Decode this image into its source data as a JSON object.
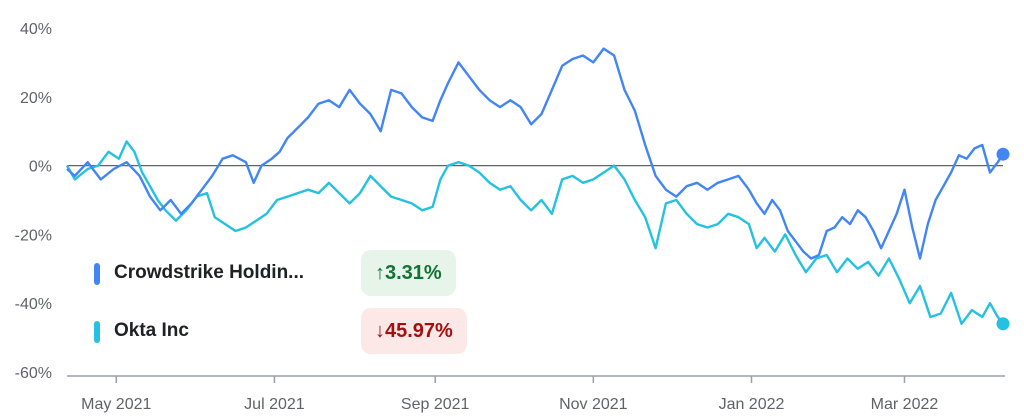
{
  "colors": {
    "crowdstrike": "#4285f4",
    "okta": "#24c1e0",
    "baseline": "#5f6368",
    "axis": "#9aa0a6",
    "up_text": "#137333",
    "up_bg": "#e6f4ea",
    "down_text": "#a50e0e",
    "down_bg": "#fce8e6"
  },
  "legend": [
    {
      "label": "Crowdstrike Holdin...",
      "change": "3.31%",
      "direction": "up",
      "arrow": "↑",
      "color": "#4285f4"
    },
    {
      "label": "Okta Inc",
      "change": "45.97%",
      "direction": "down",
      "arrow": "↓",
      "color": "#24c1e0"
    }
  ],
  "chart_data": {
    "type": "line",
    "x_ticks": [
      "May 2021",
      "Jul 2021",
      "Sep 2021",
      "Nov 2021",
      "Jan 2022",
      "Mar 2022"
    ],
    "y_ticks": [
      "40%",
      "20%",
      "0%",
      "-20%",
      "-40%",
      "-60%"
    ],
    "ylim": [
      -60,
      40
    ],
    "x_start": "2021-04-12",
    "x_end": "2022-04-08",
    "baseline": 0,
    "series": [
      {
        "name": "Crowdstrike Holdin...",
        "color": "#4285f4",
        "end_value": 3.31,
        "points": [
          [
            "2021-04-12",
            -1
          ],
          [
            "2021-04-15",
            -3
          ],
          [
            "2021-04-20",
            1
          ],
          [
            "2021-04-25",
            -4
          ],
          [
            "2021-04-30",
            -1
          ],
          [
            "2021-05-05",
            1
          ],
          [
            "2021-05-10",
            -3
          ],
          [
            "2021-05-14",
            -9
          ],
          [
            "2021-05-18",
            -13
          ],
          [
            "2021-05-22",
            -10
          ],
          [
            "2021-05-26",
            -14
          ],
          [
            "2021-05-30",
            -11
          ],
          [
            "2021-06-03",
            -7
          ],
          [
            "2021-06-07",
            -3
          ],
          [
            "2021-06-11",
            2
          ],
          [
            "2021-06-15",
            3
          ],
          [
            "2021-06-20",
            1
          ],
          [
            "2021-06-23",
            -5
          ],
          [
            "2021-06-26",
            0
          ],
          [
            "2021-06-30",
            2
          ],
          [
            "2021-07-03",
            4
          ],
          [
            "2021-07-06",
            8
          ],
          [
            "2021-07-10",
            11
          ],
          [
            "2021-07-14",
            14
          ],
          [
            "2021-07-18",
            18
          ],
          [
            "2021-07-22",
            19
          ],
          [
            "2021-07-26",
            17
          ],
          [
            "2021-07-30",
            22
          ],
          [
            "2021-08-03",
            18
          ],
          [
            "2021-08-07",
            15
          ],
          [
            "2021-08-11",
            10
          ],
          [
            "2021-08-15",
            22
          ],
          [
            "2021-08-19",
            21
          ],
          [
            "2021-08-23",
            17
          ],
          [
            "2021-08-27",
            14
          ],
          [
            "2021-08-31",
            13
          ],
          [
            "2021-09-03",
            19
          ],
          [
            "2021-09-06",
            24
          ],
          [
            "2021-09-10",
            30
          ],
          [
            "2021-09-14",
            26
          ],
          [
            "2021-09-18",
            22
          ],
          [
            "2021-09-22",
            19
          ],
          [
            "2021-09-26",
            17
          ],
          [
            "2021-09-30",
            19
          ],
          [
            "2021-10-04",
            17
          ],
          [
            "2021-10-08",
            12
          ],
          [
            "2021-10-12",
            15
          ],
          [
            "2021-10-16",
            22
          ],
          [
            "2021-10-20",
            29
          ],
          [
            "2021-10-24",
            31
          ],
          [
            "2021-10-28",
            32
          ],
          [
            "2021-11-01",
            30
          ],
          [
            "2021-11-05",
            34
          ],
          [
            "2021-11-09",
            32
          ],
          [
            "2021-11-13",
            22
          ],
          [
            "2021-11-17",
            16
          ],
          [
            "2021-11-21",
            6
          ],
          [
            "2021-11-25",
            -3
          ],
          [
            "2021-11-29",
            -7
          ],
          [
            "2021-12-03",
            -9
          ],
          [
            "2021-12-07",
            -6
          ],
          [
            "2021-12-11",
            -5
          ],
          [
            "2021-12-15",
            -7
          ],
          [
            "2021-12-19",
            -5
          ],
          [
            "2021-12-23",
            -4
          ],
          [
            "2021-12-27",
            -3
          ],
          [
            "2021-12-31",
            -7
          ],
          [
            "2022-01-03",
            -11
          ],
          [
            "2022-01-06",
            -14
          ],
          [
            "2022-01-09",
            -10
          ],
          [
            "2022-01-12",
            -13
          ],
          [
            "2022-01-15",
            -19
          ],
          [
            "2022-01-18",
            -22
          ],
          [
            "2022-01-21",
            -25
          ],
          [
            "2022-01-24",
            -27
          ],
          [
            "2022-01-27",
            -26
          ],
          [
            "2022-01-30",
            -19
          ],
          [
            "2022-02-02",
            -18
          ],
          [
            "2022-02-05",
            -15
          ],
          [
            "2022-02-08",
            -17
          ],
          [
            "2022-02-11",
            -13
          ],
          [
            "2022-02-14",
            -15
          ],
          [
            "2022-02-17",
            -19
          ],
          [
            "2022-02-20",
            -24
          ],
          [
            "2022-02-23",
            -19
          ],
          [
            "2022-02-26",
            -14
          ],
          [
            "2022-03-01",
            -7
          ],
          [
            "2022-03-04",
            -18
          ],
          [
            "2022-03-07",
            -27
          ],
          [
            "2022-03-10",
            -17
          ],
          [
            "2022-03-13",
            -10
          ],
          [
            "2022-03-16",
            -6
          ],
          [
            "2022-03-19",
            -2
          ],
          [
            "2022-03-22",
            3
          ],
          [
            "2022-03-25",
            2
          ],
          [
            "2022-03-28",
            5
          ],
          [
            "2022-03-31",
            6
          ],
          [
            "2022-04-03",
            -2
          ],
          [
            "2022-04-06",
            1
          ],
          [
            "2022-04-08",
            3.31
          ]
        ]
      },
      {
        "name": "Okta Inc",
        "color": "#24c1e0",
        "end_value": -45.97,
        "points": [
          [
            "2021-04-12",
            0
          ],
          [
            "2021-04-15",
            -4
          ],
          [
            "2021-04-20",
            -1
          ],
          [
            "2021-04-24",
            0
          ],
          [
            "2021-04-28",
            4
          ],
          [
            "2021-05-02",
            2
          ],
          [
            "2021-05-05",
            7
          ],
          [
            "2021-05-08",
            4
          ],
          [
            "2021-05-11",
            -2
          ],
          [
            "2021-05-14",
            -6
          ],
          [
            "2021-05-17",
            -10
          ],
          [
            "2021-05-20",
            -13
          ],
          [
            "2021-05-24",
            -16
          ],
          [
            "2021-05-28",
            -13
          ],
          [
            "2021-06-01",
            -9
          ],
          [
            "2021-06-05",
            -8
          ],
          [
            "2021-06-08",
            -15
          ],
          [
            "2021-06-12",
            -17
          ],
          [
            "2021-06-16",
            -19
          ],
          [
            "2021-06-20",
            -18
          ],
          [
            "2021-06-24",
            -16
          ],
          [
            "2021-06-28",
            -14
          ],
          [
            "2021-07-02",
            -10
          ],
          [
            "2021-07-06",
            -9
          ],
          [
            "2021-07-10",
            -8
          ],
          [
            "2021-07-14",
            -7
          ],
          [
            "2021-07-18",
            -8
          ],
          [
            "2021-07-22",
            -5
          ],
          [
            "2021-07-26",
            -8
          ],
          [
            "2021-07-30",
            -11
          ],
          [
            "2021-08-03",
            -8
          ],
          [
            "2021-08-07",
            -3
          ],
          [
            "2021-08-11",
            -6
          ],
          [
            "2021-08-15",
            -9
          ],
          [
            "2021-08-19",
            -10
          ],
          [
            "2021-08-23",
            -11
          ],
          [
            "2021-08-27",
            -13
          ],
          [
            "2021-08-31",
            -12
          ],
          [
            "2021-09-03",
            -4
          ],
          [
            "2021-09-06",
            0
          ],
          [
            "2021-09-10",
            1
          ],
          [
            "2021-09-14",
            0
          ],
          [
            "2021-09-18",
            -2
          ],
          [
            "2021-09-22",
            -5
          ],
          [
            "2021-09-26",
            -7
          ],
          [
            "2021-09-30",
            -6
          ],
          [
            "2021-10-04",
            -10
          ],
          [
            "2021-10-08",
            -13
          ],
          [
            "2021-10-12",
            -10
          ],
          [
            "2021-10-16",
            -14
          ],
          [
            "2021-10-20",
            -4
          ],
          [
            "2021-10-24",
            -3
          ],
          [
            "2021-10-28",
            -5
          ],
          [
            "2021-11-01",
            -4
          ],
          [
            "2021-11-05",
            -2
          ],
          [
            "2021-11-09",
            0
          ],
          [
            "2021-11-13",
            -4
          ],
          [
            "2021-11-17",
            -10
          ],
          [
            "2021-11-21",
            -15
          ],
          [
            "2021-11-25",
            -24
          ],
          [
            "2021-11-29",
            -11
          ],
          [
            "2021-12-03",
            -10
          ],
          [
            "2021-12-07",
            -14
          ],
          [
            "2021-12-11",
            -17
          ],
          [
            "2021-12-15",
            -18
          ],
          [
            "2021-12-19",
            -17
          ],
          [
            "2021-12-23",
            -14
          ],
          [
            "2021-12-27",
            -15
          ],
          [
            "2021-12-31",
            -17
          ],
          [
            "2022-01-03",
            -24
          ],
          [
            "2022-01-06",
            -21
          ],
          [
            "2022-01-10",
            -25
          ],
          [
            "2022-01-14",
            -20
          ],
          [
            "2022-01-18",
            -26
          ],
          [
            "2022-01-22",
            -31
          ],
          [
            "2022-01-26",
            -27
          ],
          [
            "2022-01-30",
            -26
          ],
          [
            "2022-02-03",
            -31
          ],
          [
            "2022-02-07",
            -27
          ],
          [
            "2022-02-11",
            -30
          ],
          [
            "2022-02-15",
            -28
          ],
          [
            "2022-02-19",
            -32
          ],
          [
            "2022-02-23",
            -27
          ],
          [
            "2022-02-27",
            -33
          ],
          [
            "2022-03-03",
            -40
          ],
          [
            "2022-03-07",
            -35
          ],
          [
            "2022-03-11",
            -44
          ],
          [
            "2022-03-15",
            -43
          ],
          [
            "2022-03-19",
            -37
          ],
          [
            "2022-03-23",
            -46
          ],
          [
            "2022-03-27",
            -42
          ],
          [
            "2022-03-31",
            -44
          ],
          [
            "2022-04-03",
            -40
          ],
          [
            "2022-04-06",
            -44
          ],
          [
            "2022-04-08",
            -45.97
          ]
        ]
      }
    ]
  }
}
